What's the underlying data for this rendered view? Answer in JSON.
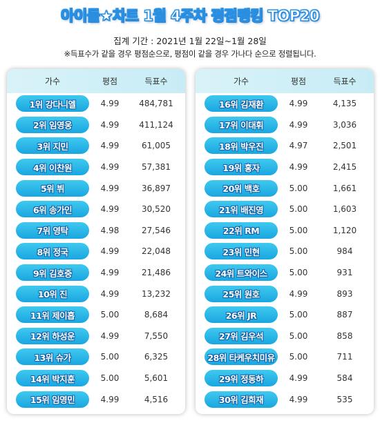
{
  "title": "아이돌★차트 1월 4주차 평점랭킹 TOP20",
  "period": "집계 기간 : 2021년 1월 22일~1월 28일",
  "note": "※득표수가 같을 경우 평점순으로, 평점이 같을 경우 가나다 순으로 정렬됩니다.",
  "headers": {
    "singer": "가수",
    "rating": "평점",
    "votes": "득표수"
  },
  "left_rows": [
    {
      "label": "1위 강다니엘",
      "rating": "4.99",
      "votes": "484,781"
    },
    {
      "label": "2위 임영웅",
      "rating": "4.99",
      "votes": "411,124"
    },
    {
      "label": "3위 지민",
      "rating": "4.99",
      "votes": "61,005"
    },
    {
      "label": "4위 이찬원",
      "rating": "4.99",
      "votes": "57,381"
    },
    {
      "label": "5위 뷔",
      "rating": "4.99",
      "votes": "36,897"
    },
    {
      "label": "6위 송가인",
      "rating": "4.99",
      "votes": "30,520"
    },
    {
      "label": "7위 영탁",
      "rating": "4.98",
      "votes": "27,546"
    },
    {
      "label": "8위 정국",
      "rating": "4.99",
      "votes": "22,048"
    },
    {
      "label": "9위 김호중",
      "rating": "4.99",
      "votes": "21,486"
    },
    {
      "label": "10위 진",
      "rating": "4.99",
      "votes": "13,232"
    },
    {
      "label": "11위 제이홉",
      "rating": "5.00",
      "votes": "8,684"
    },
    {
      "label": "12위 하성운",
      "rating": "4.99",
      "votes": "7,550"
    },
    {
      "label": "13위 슈가",
      "rating": "5.00",
      "votes": "6,325"
    },
    {
      "label": "14위 박지훈",
      "rating": "5.00",
      "votes": "5,601"
    },
    {
      "label": "15위 임영민",
      "rating": "4.99",
      "votes": "4,516"
    }
  ],
  "right_rows": [
    {
      "label": "16위 김재환",
      "rating": "4.99",
      "votes": "4,135"
    },
    {
      "label": "17위 이대휘",
      "rating": "4.99",
      "votes": "3,036"
    },
    {
      "label": "18위 박우진",
      "rating": "4.97",
      "votes": "2,501"
    },
    {
      "label": "19위 홍자",
      "rating": "4.99",
      "votes": "2,415"
    },
    {
      "label": "20위 백호",
      "rating": "5.00",
      "votes": "1,661"
    },
    {
      "label": "21위 배진영",
      "rating": "5.00",
      "votes": "1,603"
    },
    {
      "label": "22위 RM",
      "rating": "5.00",
      "votes": "1,120"
    },
    {
      "label": "23위 민현",
      "rating": "5.00",
      "votes": "984"
    },
    {
      "label": "24위 트와이스",
      "rating": "5.00",
      "votes": "931"
    },
    {
      "label": "25위 원호",
      "rating": "4.99",
      "votes": "893"
    },
    {
      "label": "26위 JR",
      "rating": "5.00",
      "votes": "887"
    },
    {
      "label": "27위 김우석",
      "rating": "5.00",
      "votes": "858"
    },
    {
      "label": "28위 타케우치미유",
      "rating": "5.00",
      "votes": "711"
    },
    {
      "label": "29위 정동하",
      "rating": "4.99",
      "votes": "584"
    },
    {
      "label": "30위 김희재",
      "rating": "4.99",
      "votes": "535"
    }
  ]
}
